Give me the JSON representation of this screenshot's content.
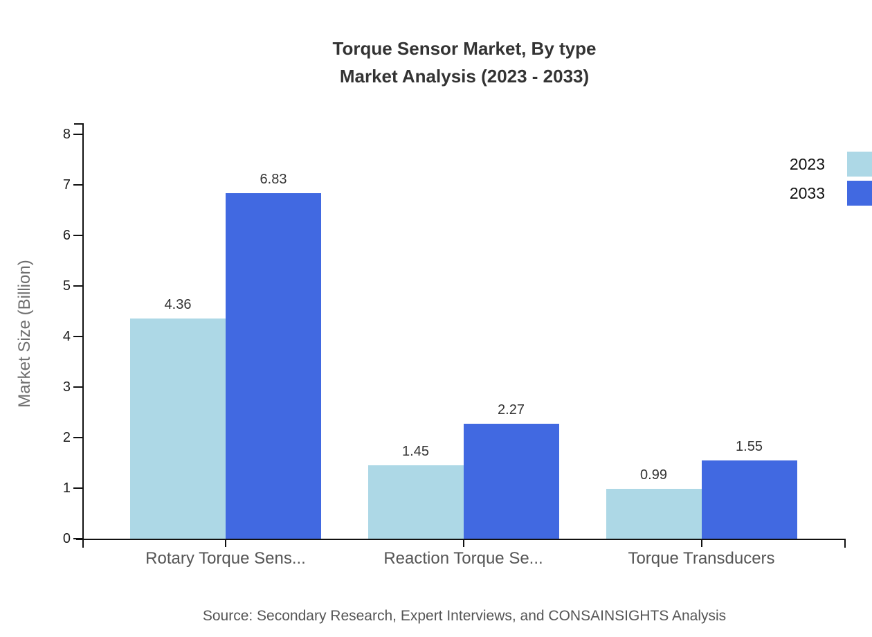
{
  "title": {
    "line1": "Torque Sensor Market, By type",
    "line2": "Market Analysis (2023 - 2033)"
  },
  "source": "Source: Secondary Research, Expert Interviews, and CONSAINSIGHTS Analysis",
  "colors": {
    "axis": "#111111",
    "tick_label": "#1a1a1a",
    "category_label": "#555555",
    "value_label": "#333333",
    "series_2023": "#ADD8E6",
    "series_2033": "#4169E1"
  },
  "chart_data": {
    "type": "bar",
    "title": "Torque Sensor Market, By type — Market Analysis (2023 - 2033)",
    "categories": [
      "Rotary Torque Sens...",
      "Reaction Torque Se...",
      "Torque Transducers"
    ],
    "series": [
      {
        "name": "2023",
        "color": "#ADD8E6",
        "values": [
          4.36,
          1.45,
          0.99
        ]
      },
      {
        "name": "2033",
        "color": "#4169E1",
        "values": [
          6.83,
          2.27,
          1.55
        ]
      }
    ],
    "xlabel": "",
    "ylabel": "Market Size (Billion)",
    "ylim": [
      0,
      8
    ],
    "y_tick_step": 1,
    "y_tick_labels": [
      "0",
      "1",
      "2",
      "3",
      "4",
      "5",
      "6",
      "7",
      "8"
    ],
    "grid": false,
    "legend_position": "top-right",
    "value_labels": true
  }
}
